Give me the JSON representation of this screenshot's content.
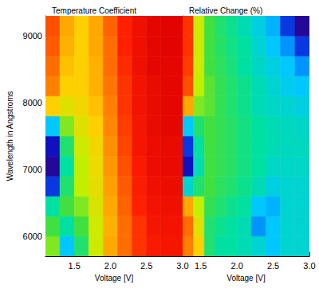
{
  "chart_data": [
    {
      "type": "heatmap",
      "title": "Temperature Coefficient",
      "xlabel": "Voltage [V]",
      "ylabel": "Wavelength in Angstroms",
      "xlim": [
        1.1,
        3.0
      ],
      "xticks": [
        1.5,
        {
          "value": 2,
          "label": "2.0"
        },
        2.5,
        {
          "value": 3,
          "label": "3.0"
        }
      ],
      "ylim": [
        5700,
        9300
      ],
      "yticks": [
        6000,
        7000,
        8000,
        9000
      ],
      "zlim": [
        0,
        1
      ],
      "x_edges": [
        1.1,
        1.3,
        1.5,
        1.7,
        1.9,
        2.1,
        2.3,
        2.5,
        2.7,
        2.9,
        3.0
      ],
      "y_edges": [
        5700,
        6000,
        6300,
        6600,
        6900,
        7200,
        7500,
        7800,
        8100,
        8400,
        8700,
        9000,
        9300
      ],
      "cells": [
        [
          0.55,
          0.3,
          0.45,
          0.62,
          0.75,
          0.82,
          0.88,
          0.92,
          0.93,
          0.93
        ],
        [
          0.5,
          0.4,
          0.5,
          0.62,
          0.74,
          0.82,
          0.88,
          0.93,
          0.94,
          0.94
        ],
        [
          0.4,
          0.5,
          0.55,
          0.64,
          0.75,
          0.83,
          0.9,
          0.94,
          0.95,
          0.95
        ],
        [
          0.15,
          0.45,
          0.6,
          0.66,
          0.76,
          0.84,
          0.91,
          0.95,
          0.96,
          0.96
        ],
        [
          0.05,
          0.4,
          0.6,
          0.67,
          0.77,
          0.85,
          0.92,
          0.96,
          0.97,
          0.97
        ],
        [
          0.1,
          0.45,
          0.62,
          0.68,
          0.78,
          0.86,
          0.93,
          0.96,
          0.97,
          0.97
        ],
        [
          0.3,
          0.55,
          0.65,
          0.7,
          0.79,
          0.87,
          0.93,
          0.97,
          0.98,
          0.98
        ],
        [
          0.7,
          0.65,
          0.68,
          0.72,
          0.8,
          0.88,
          0.94,
          0.97,
          0.98,
          0.98
        ],
        [
          0.8,
          0.7,
          0.7,
          0.74,
          0.81,
          0.88,
          0.94,
          0.97,
          0.98,
          0.98
        ],
        [
          0.82,
          0.72,
          0.7,
          0.74,
          0.82,
          0.89,
          0.95,
          0.98,
          0.98,
          0.98
        ],
        [
          0.84,
          0.74,
          0.7,
          0.75,
          0.82,
          0.9,
          0.95,
          0.98,
          0.99,
          0.99
        ],
        [
          0.85,
          0.75,
          0.7,
          0.75,
          0.83,
          0.9,
          0.95,
          0.98,
          0.99,
          0.99
        ]
      ]
    },
    {
      "type": "heatmap",
      "title": "Relative Change (%)",
      "xlabel": "Voltage [V]",
      "xlim": [
        1.25,
        3.0
      ],
      "xticks": [
        1.5,
        {
          "value": 2,
          "label": "2.0"
        },
        2.5,
        {
          "value": 3,
          "label": "3.0"
        }
      ],
      "ylim": [
        5700,
        9300
      ],
      "yticks": [
        6000,
        7000,
        8000,
        9000
      ],
      "tick_labels": "x",
      "zlim": [
        0,
        1
      ],
      "x_edges": [
        1.25,
        1.4,
        1.55,
        1.7,
        1.85,
        2.0,
        2.2,
        2.4,
        2.6,
        2.8,
        3.0
      ],
      "y_edges": [
        5700,
        6000,
        6300,
        6600,
        6900,
        7200,
        7500,
        7800,
        8100,
        8400,
        8700,
        9000,
        9300
      ],
      "cells": [
        [
          0.8,
          0.7,
          0.45,
          0.4,
          0.4,
          0.38,
          0.35,
          0.3,
          0.35,
          0.35
        ],
        [
          0.82,
          0.65,
          0.45,
          0.42,
          0.4,
          0.38,
          0.25,
          0.3,
          0.35,
          0.35
        ],
        [
          0.75,
          0.6,
          0.48,
          0.45,
          0.42,
          0.4,
          0.3,
          0.28,
          0.35,
          0.35
        ],
        [
          0.35,
          0.45,
          0.5,
          0.47,
          0.45,
          0.42,
          0.38,
          0.33,
          0.35,
          0.35
        ],
        [
          0.1,
          0.38,
          0.5,
          0.48,
          0.46,
          0.43,
          0.4,
          0.36,
          0.36,
          0.36
        ],
        [
          0.15,
          0.4,
          0.5,
          0.48,
          0.46,
          0.43,
          0.4,
          0.38,
          0.37,
          0.37
        ],
        [
          0.3,
          0.45,
          0.5,
          0.48,
          0.46,
          0.43,
          0.4,
          0.38,
          0.37,
          0.36
        ],
        [
          0.75,
          0.55,
          0.52,
          0.48,
          0.45,
          0.42,
          0.38,
          0.36,
          0.35,
          0.33
        ],
        [
          0.85,
          0.6,
          0.52,
          0.48,
          0.45,
          0.42,
          0.38,
          0.35,
          0.32,
          0.3
        ],
        [
          0.87,
          0.62,
          0.5,
          0.47,
          0.44,
          0.4,
          0.36,
          0.33,
          0.3,
          0.25
        ],
        [
          0.88,
          0.62,
          0.5,
          0.46,
          0.43,
          0.4,
          0.35,
          0.3,
          0.25,
          0.15
        ],
        [
          0.88,
          0.62,
          0.5,
          0.45,
          0.42,
          0.38,
          0.33,
          0.28,
          0.15,
          0.05
        ]
      ]
    }
  ]
}
